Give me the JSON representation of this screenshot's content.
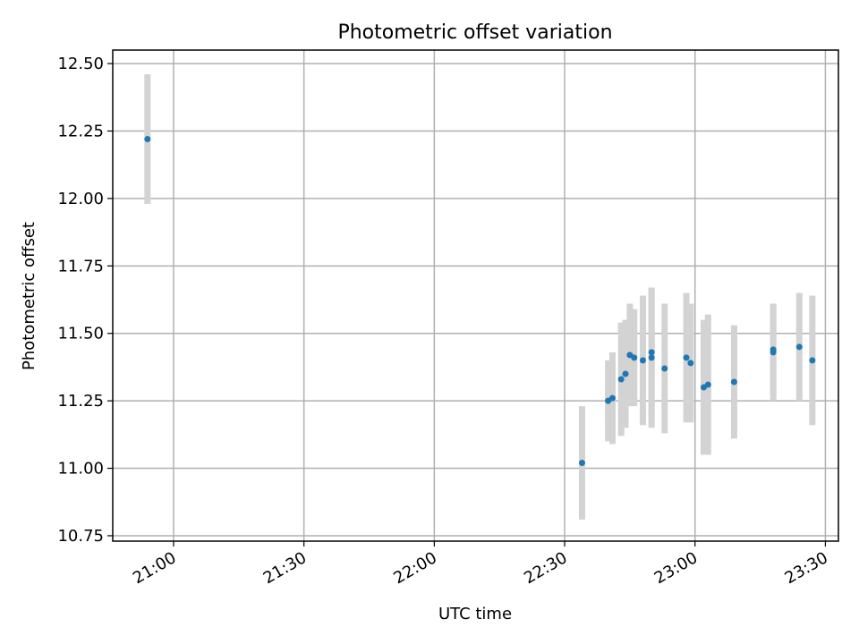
{
  "chart_data": {
    "type": "scatter",
    "title": "Photometric offset variation",
    "xlabel": "UTC time",
    "ylabel": "Photometric offset",
    "xlim": [
      "20:46",
      "23:33"
    ],
    "ylim": [
      10.73,
      12.55
    ],
    "x_ticks": [
      "21:00",
      "21:30",
      "22:00",
      "22:30",
      "23:00",
      "23:30"
    ],
    "y_ticks": [
      10.75,
      11.0,
      11.25,
      11.5,
      11.75,
      12.0,
      12.25,
      12.5
    ],
    "grid": true,
    "colors": {
      "points": "#1f77b4",
      "error_bars": "#d3d3d3",
      "grid": "#b0b0b0"
    },
    "series": [
      {
        "points": [
          {
            "x": "20:54",
            "y": 12.22,
            "yerr": 0.24
          },
          {
            "x": "22:34",
            "y": 11.02,
            "yerr": 0.21
          },
          {
            "x": "22:40",
            "y": 11.25,
            "yerr": 0.15
          },
          {
            "x": "22:41",
            "y": 11.26,
            "yerr": 0.17
          },
          {
            "x": "22:43",
            "y": 11.33,
            "yerr": 0.21
          },
          {
            "x": "22:44",
            "y": 11.35,
            "yerr": 0.2
          },
          {
            "x": "22:45",
            "y": 11.42,
            "yerr": 0.19
          },
          {
            "x": "22:46",
            "y": 11.41,
            "yerr": 0.18
          },
          {
            "x": "22:48",
            "y": 11.4,
            "yerr": 0.24
          },
          {
            "x": "22:50",
            "y": 11.41,
            "yerr": 0.26
          },
          {
            "x": "22:50",
            "y": 11.43,
            "yerr": 0.24
          },
          {
            "x": "22:53",
            "y": 11.37,
            "yerr": 0.24
          },
          {
            "x": "22:58",
            "y": 11.41,
            "yerr": 0.24
          },
          {
            "x": "22:59",
            "y": 11.39,
            "yerr": 0.22
          },
          {
            "x": "23:02",
            "y": 11.3,
            "yerr": 0.25
          },
          {
            "x": "23:03",
            "y": 11.31,
            "yerr": 0.26
          },
          {
            "x": "23:09",
            "y": 11.32,
            "yerr": 0.21
          },
          {
            "x": "23:18",
            "y": 11.43,
            "yerr": 0.18
          },
          {
            "x": "23:18",
            "y": 11.44,
            "yerr": 0.17
          },
          {
            "x": "23:24",
            "y": 11.45,
            "yerr": 0.2
          },
          {
            "x": "23:27",
            "y": 11.4,
            "yerr": 0.24
          }
        ]
      }
    ]
  }
}
